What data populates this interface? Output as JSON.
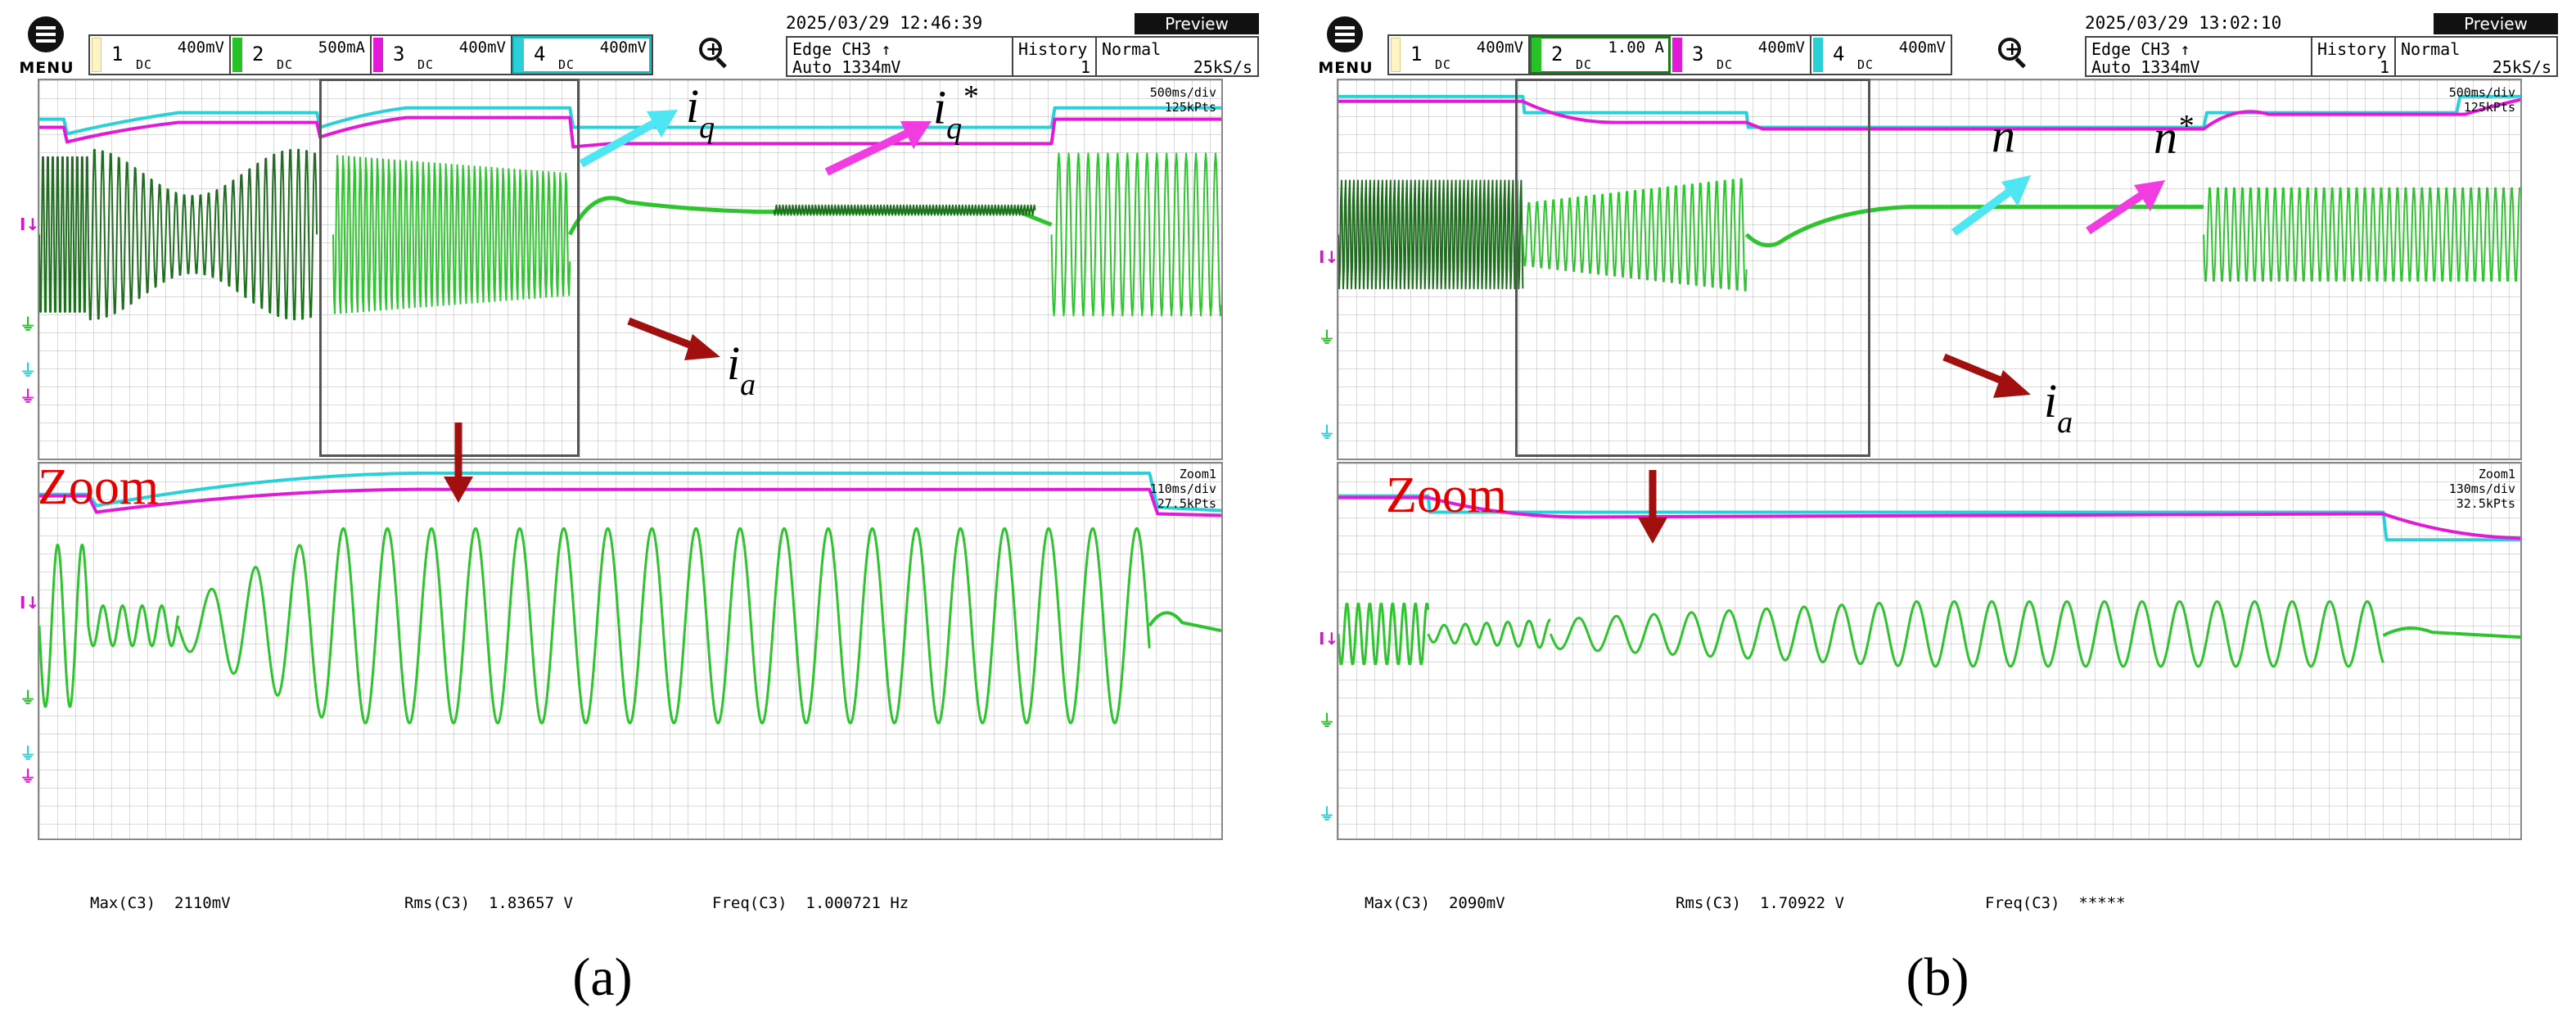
{
  "panels": [
    {
      "id": "a",
      "menu_label": "MENU",
      "channels": [
        {
          "num": "1",
          "scale": "400mV",
          "coupling": "DC",
          "color": "#fff4c6",
          "active": false
        },
        {
          "num": "2",
          "scale": "500mA",
          "coupling": "DC",
          "color": "#27c227",
          "active": false
        },
        {
          "num": "3",
          "scale": "400mV",
          "coupling": "DC",
          "color": "#e21ad8",
          "active": false
        },
        {
          "num": "4",
          "scale": "400mV",
          "coupling": "DC",
          "color": "#2ad0d6",
          "active": true
        }
      ],
      "datetime": "2025/03/29 12:46:39",
      "trigger_line1": "Edge CH3 ↑",
      "trigger_line2": "Auto 1334mV",
      "history_label": "History",
      "history_value": "1",
      "mode_label": "Normal",
      "sample_rate": "25kS/s",
      "preview_label": "Preview",
      "main_timebase": "500ms/div",
      "main_points": "125kPts",
      "zoom_name": "Zoom1",
      "zoom_timebase": "110ms/div",
      "zoom_points": "27.5kPts",
      "zoom_word": "Zoom",
      "annotations": {
        "label1": "i",
        "sub1": "q",
        "label2": "i",
        "sub2": "q",
        "sup2": "*",
        "label3": "i",
        "sub3": "a"
      },
      "measurements": [
        {
          "name": "Max(C3)",
          "value": "2110mV"
        },
        {
          "name": "Rms(C3)",
          "value": "1.83657 V"
        },
        {
          "name": "Freq(C3)",
          "value": "1.000721 Hz"
        }
      ],
      "panel_label": "(a)"
    },
    {
      "id": "b",
      "menu_label": "MENU",
      "channels": [
        {
          "num": "1",
          "scale": "400mV",
          "coupling": "DC",
          "color": "#fff4c6",
          "active": false
        },
        {
          "num": "2",
          "scale": "1.00 A",
          "coupling": "DC",
          "color": "#27c227",
          "active": true
        },
        {
          "num": "3",
          "scale": "400mV",
          "coupling": "DC",
          "color": "#e21ad8",
          "active": false
        },
        {
          "num": "4",
          "scale": "400mV",
          "coupling": "DC",
          "color": "#2ad0d6",
          "active": false
        }
      ],
      "datetime": "2025/03/29 13:02:10",
      "trigger_line1": "Edge CH3 ↑",
      "trigger_line2": "Auto 1334mV",
      "history_label": "History",
      "history_value": "1",
      "mode_label": "Normal",
      "sample_rate": "25kS/s",
      "preview_label": "Preview",
      "main_timebase": "500ms/div",
      "main_points": "125kPts",
      "zoom_name": "Zoom1",
      "zoom_timebase": "130ms/div",
      "zoom_points": "32.5kPts",
      "zoom_word": "Zoom",
      "annotations": {
        "label1": "n",
        "label2": "n",
        "sup2": "*",
        "label3": "i",
        "sub3": "a"
      },
      "measurements": [
        {
          "name": "Max(C3)",
          "value": "2090mV"
        },
        {
          "name": "Rms(C3)",
          "value": "1.70922 V"
        },
        {
          "name": "Freq(C3)",
          "value": "*****"
        }
      ],
      "panel_label": "(b)"
    }
  ],
  "colors": {
    "cyan_trace": "#2ad0d6",
    "magenta_trace": "#e21ad8",
    "green_trace": "#2fc42f",
    "dark_green_trace": "#1f6e1f",
    "zoom_text": "#e30000",
    "arrow_cyan": "#4de6f2",
    "arrow_magenta": "#f03ce0",
    "arrow_red": "#a10f0f"
  },
  "icons": [
    "menu-icon",
    "zoom-in-icon"
  ]
}
